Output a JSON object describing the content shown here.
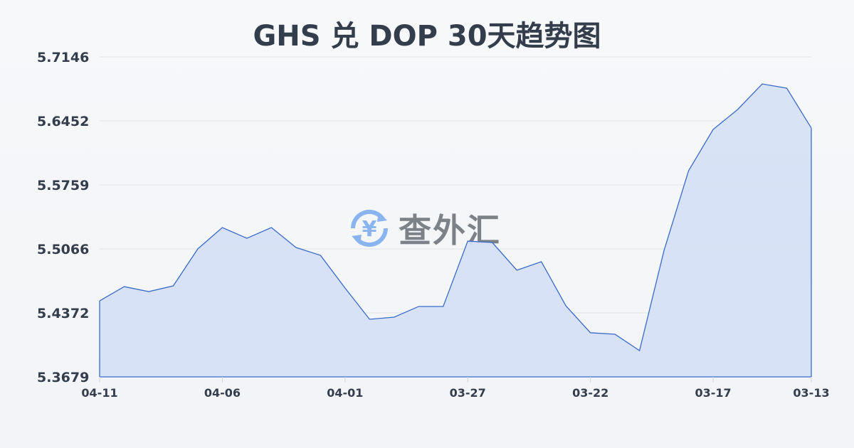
{
  "watermark": "查外汇",
  "chart_data": {
    "type": "area",
    "title": "GHS 兑 DOP 30天趋势图",
    "xlabel": "",
    "ylabel": "",
    "ylim": [
      5.3679,
      5.7146
    ],
    "yticks": [
      "5.7146",
      "5.6452",
      "5.5759",
      "5.5066",
      "5.4372",
      "5.3679"
    ],
    "xtick_labels": [
      "04-11",
      "04-06",
      "04-01",
      "03-27",
      "03-22",
      "03-17",
      "03-13"
    ],
    "x": [
      "04-11",
      "04-10",
      "04-09",
      "04-08",
      "04-07",
      "04-06",
      "04-05",
      "04-04",
      "04-03",
      "04-02",
      "04-01",
      "03-31",
      "03-30",
      "03-29",
      "03-28",
      "03-27",
      "03-26",
      "03-25",
      "03-24",
      "03-23",
      "03-22",
      "03-21",
      "03-20",
      "03-19",
      "03-18",
      "03-17",
      "03-16",
      "03-15",
      "03-14",
      "03-13"
    ],
    "values": [
      5.4503,
      5.4657,
      5.4603,
      5.4665,
      5.5066,
      5.5297,
      5.5181,
      5.5297,
      5.5081,
      5.4996,
      5.4642,
      5.4303,
      5.4326,
      5.4442,
      5.4442,
      5.515,
      5.5135,
      5.4835,
      5.4927,
      5.4449,
      5.4157,
      5.4141,
      5.3964,
      5.505,
      5.5913,
      5.636,
      5.6576,
      5.6853,
      5.6807,
      5.6375
    ],
    "grid": true,
    "colors": {
      "line": "#3a6bc9",
      "fill": "#d5e0f5"
    }
  }
}
